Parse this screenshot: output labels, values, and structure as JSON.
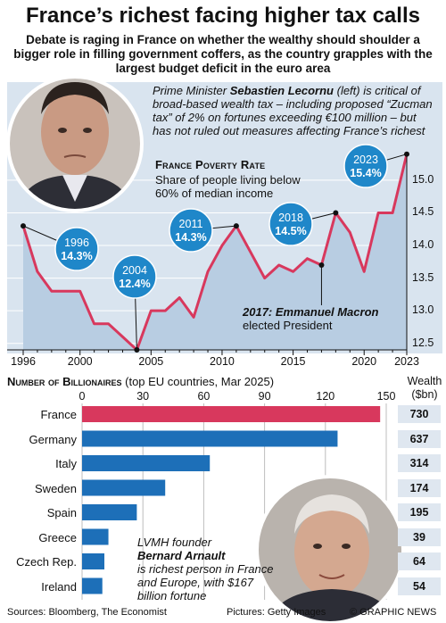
{
  "title": "France’s richest facing higher tax calls",
  "subtitle": "Debate is raging in France on whether the wealthy should shoulder a bigger role in filling government coffers, as the country grapples with the largest budget deficit in the euro area",
  "pm_text": {
    "pre": "Prime Minister ",
    "name": "Sebastien Lecornu",
    "post": " (left) is critical of broad-based wealth tax – including proposed “Zucman tax” of 2% on fortunes exceeding €100 million – but has not ruled out measures affecting France’s richest"
  },
  "macron": {
    "year_name": "2017: Emmanuel Macron",
    "desc": "elected President"
  },
  "lvmh": {
    "pre": "LVMH founder",
    "name": "Bernard Arnault",
    "post": "is richest person in France and Europe, with $167 billion fortune"
  },
  "footer": {
    "sources": "Sources: Bloomberg, The Economist",
    "pictures": "Pictures: Getty Images",
    "credit": "© GRAPHIC NEWS"
  },
  "colors": {
    "accent": "#d8385d",
    "bubble": "#1f87c9",
    "panel": "#d9e4ef",
    "bar_blue": "#1d6fb8",
    "wealth_box": "#dfe7f0"
  },
  "chart_data": [
    {
      "type": "line",
      "title": "France Poverty Rate",
      "subtitle": "Share of people living below 60% of median income",
      "xlim": [
        1996,
        2023
      ],
      "ylim": [
        12.4,
        15.3
      ],
      "x_ticks": [
        1996,
        2000,
        2005,
        2010,
        2015,
        2020,
        2023
      ],
      "y_ticks": [
        12.5,
        13.0,
        13.5,
        14.0,
        14.5,
        15.0
      ],
      "x": [
        1996,
        1997,
        1998,
        1999,
        2000,
        2001,
        2002,
        2003,
        2004,
        2005,
        2006,
        2007,
        2008,
        2009,
        2010,
        2011,
        2012,
        2013,
        2014,
        2015,
        2016,
        2017,
        2018,
        2019,
        2020,
        2021,
        2022,
        2023
      ],
      "values": [
        14.3,
        13.6,
        13.3,
        13.3,
        13.3,
        12.8,
        12.8,
        12.6,
        12.4,
        13.0,
        13.0,
        13.2,
        12.9,
        13.6,
        14.0,
        14.3,
        13.9,
        13.5,
        13.7,
        13.6,
        13.8,
        13.7,
        14.5,
        14.2,
        13.6,
        14.5,
        14.5,
        15.4
      ],
      "callouts": [
        {
          "year": 1996,
          "label_year": "1996",
          "label_value": "14.3%"
        },
        {
          "year": 2004,
          "label_year": "2004",
          "label_value": "12.4%"
        },
        {
          "year": 2011,
          "label_year": "2011",
          "label_value": "14.3%"
        },
        {
          "year": 2018,
          "label_year": "2018",
          "label_value": "14.5%"
        },
        {
          "year": 2023,
          "label_year": "2023",
          "label_value": "15.4%"
        }
      ]
    },
    {
      "type": "bar",
      "title": "Number of Billionaires",
      "note": "(top EU countries, Mar 2025)",
      "xlim": [
        0,
        150
      ],
      "ticks": [
        0,
        30,
        60,
        90,
        120,
        150
      ],
      "wealth_header": "Wealth ($bn)",
      "categories": [
        "France",
        "Germany",
        "Italy",
        "Sweden",
        "Spain",
        "Greece",
        "Czech Rep.",
        "Ireland"
      ],
      "values": [
        147,
        126,
        63,
        41,
        27,
        13,
        11,
        10
      ],
      "wealth": [
        "730",
        "637",
        "314",
        "174",
        "195",
        "39",
        "64",
        "54"
      ]
    }
  ]
}
